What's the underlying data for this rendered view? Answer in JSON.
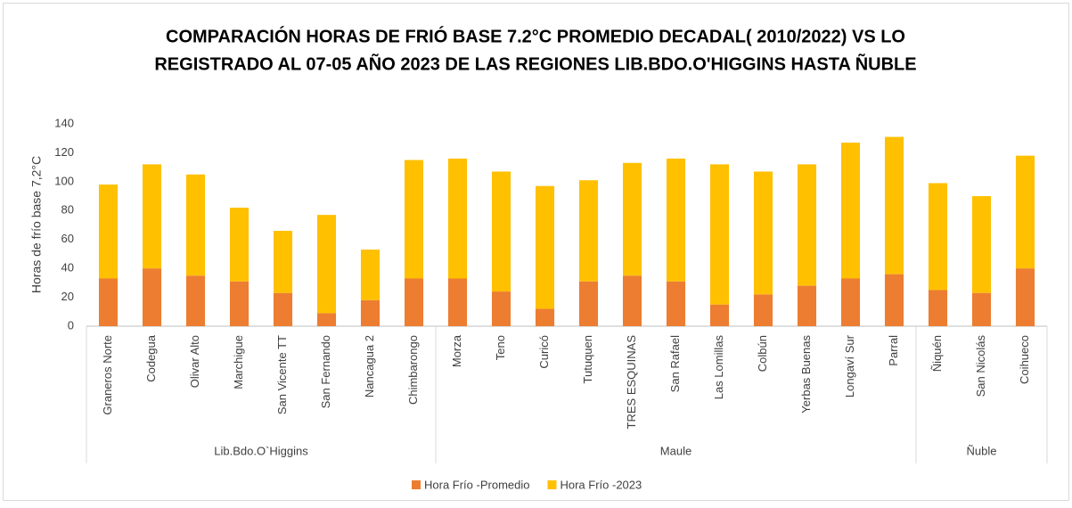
{
  "chart_data": {
    "type": "stacked_bar",
    "title": [
      "COMPARACIÓN HORAS DE FRIÓ BASE 7.2°C PROMEDIO DECADAL( 2010/2022)  VS LO",
      "REGISTRADO AL 07-05 AÑO 2023 DE LAS REGIONES LIB.BDO.O'HIGGINS HASTA ÑUBLE"
    ],
    "ylabel": "Horas de frío base 7,2°C",
    "groups": [
      {
        "name": "Lib.Bdo.O`Higgins",
        "categories": [
          "Graneros Norte",
          "Codegua",
          "Olivar Alto",
          "Marchigue",
          "San Vicente TT",
          "San Fernando",
          "Nancagua 2",
          "Chimbarongo"
        ]
      },
      {
        "name": "Maule",
        "categories": [
          "Morza",
          "Teno",
          "Curicó",
          "Tutuquen",
          "TRES ESQUINAS",
          "San Rafael",
          "Las Lomillas",
          "Colbún",
          "Yerbas Buenas",
          "Longaví Sur",
          "Parral"
        ]
      },
      {
        "name": "Ñuble",
        "categories": [
          "Ñiquén",
          "San Nicolás",
          "Coihueco"
        ]
      }
    ],
    "series": [
      {
        "name": "Hora Frío -Promedio",
        "color": "#ed7d31",
        "values": [
          33,
          40,
          35,
          31,
          23,
          9,
          18,
          33,
          33,
          24,
          12,
          31,
          35,
          31,
          15,
          22,
          28,
          33,
          36,
          25,
          23,
          40
        ]
      },
      {
        "name": "Hora Frío -2023",
        "color": "#ffc000",
        "values": [
          65,
          72,
          70,
          51,
          43,
          68,
          35,
          82,
          83,
          83,
          85,
          70,
          78,
          85,
          97,
          85,
          84,
          94,
          95,
          74,
          67,
          78
        ]
      }
    ],
    "ylim": [
      0,
      140
    ],
    "yticks": [
      0,
      20,
      40,
      60,
      80,
      100,
      120,
      140
    ],
    "grid": true,
    "legend": "bottom"
  }
}
